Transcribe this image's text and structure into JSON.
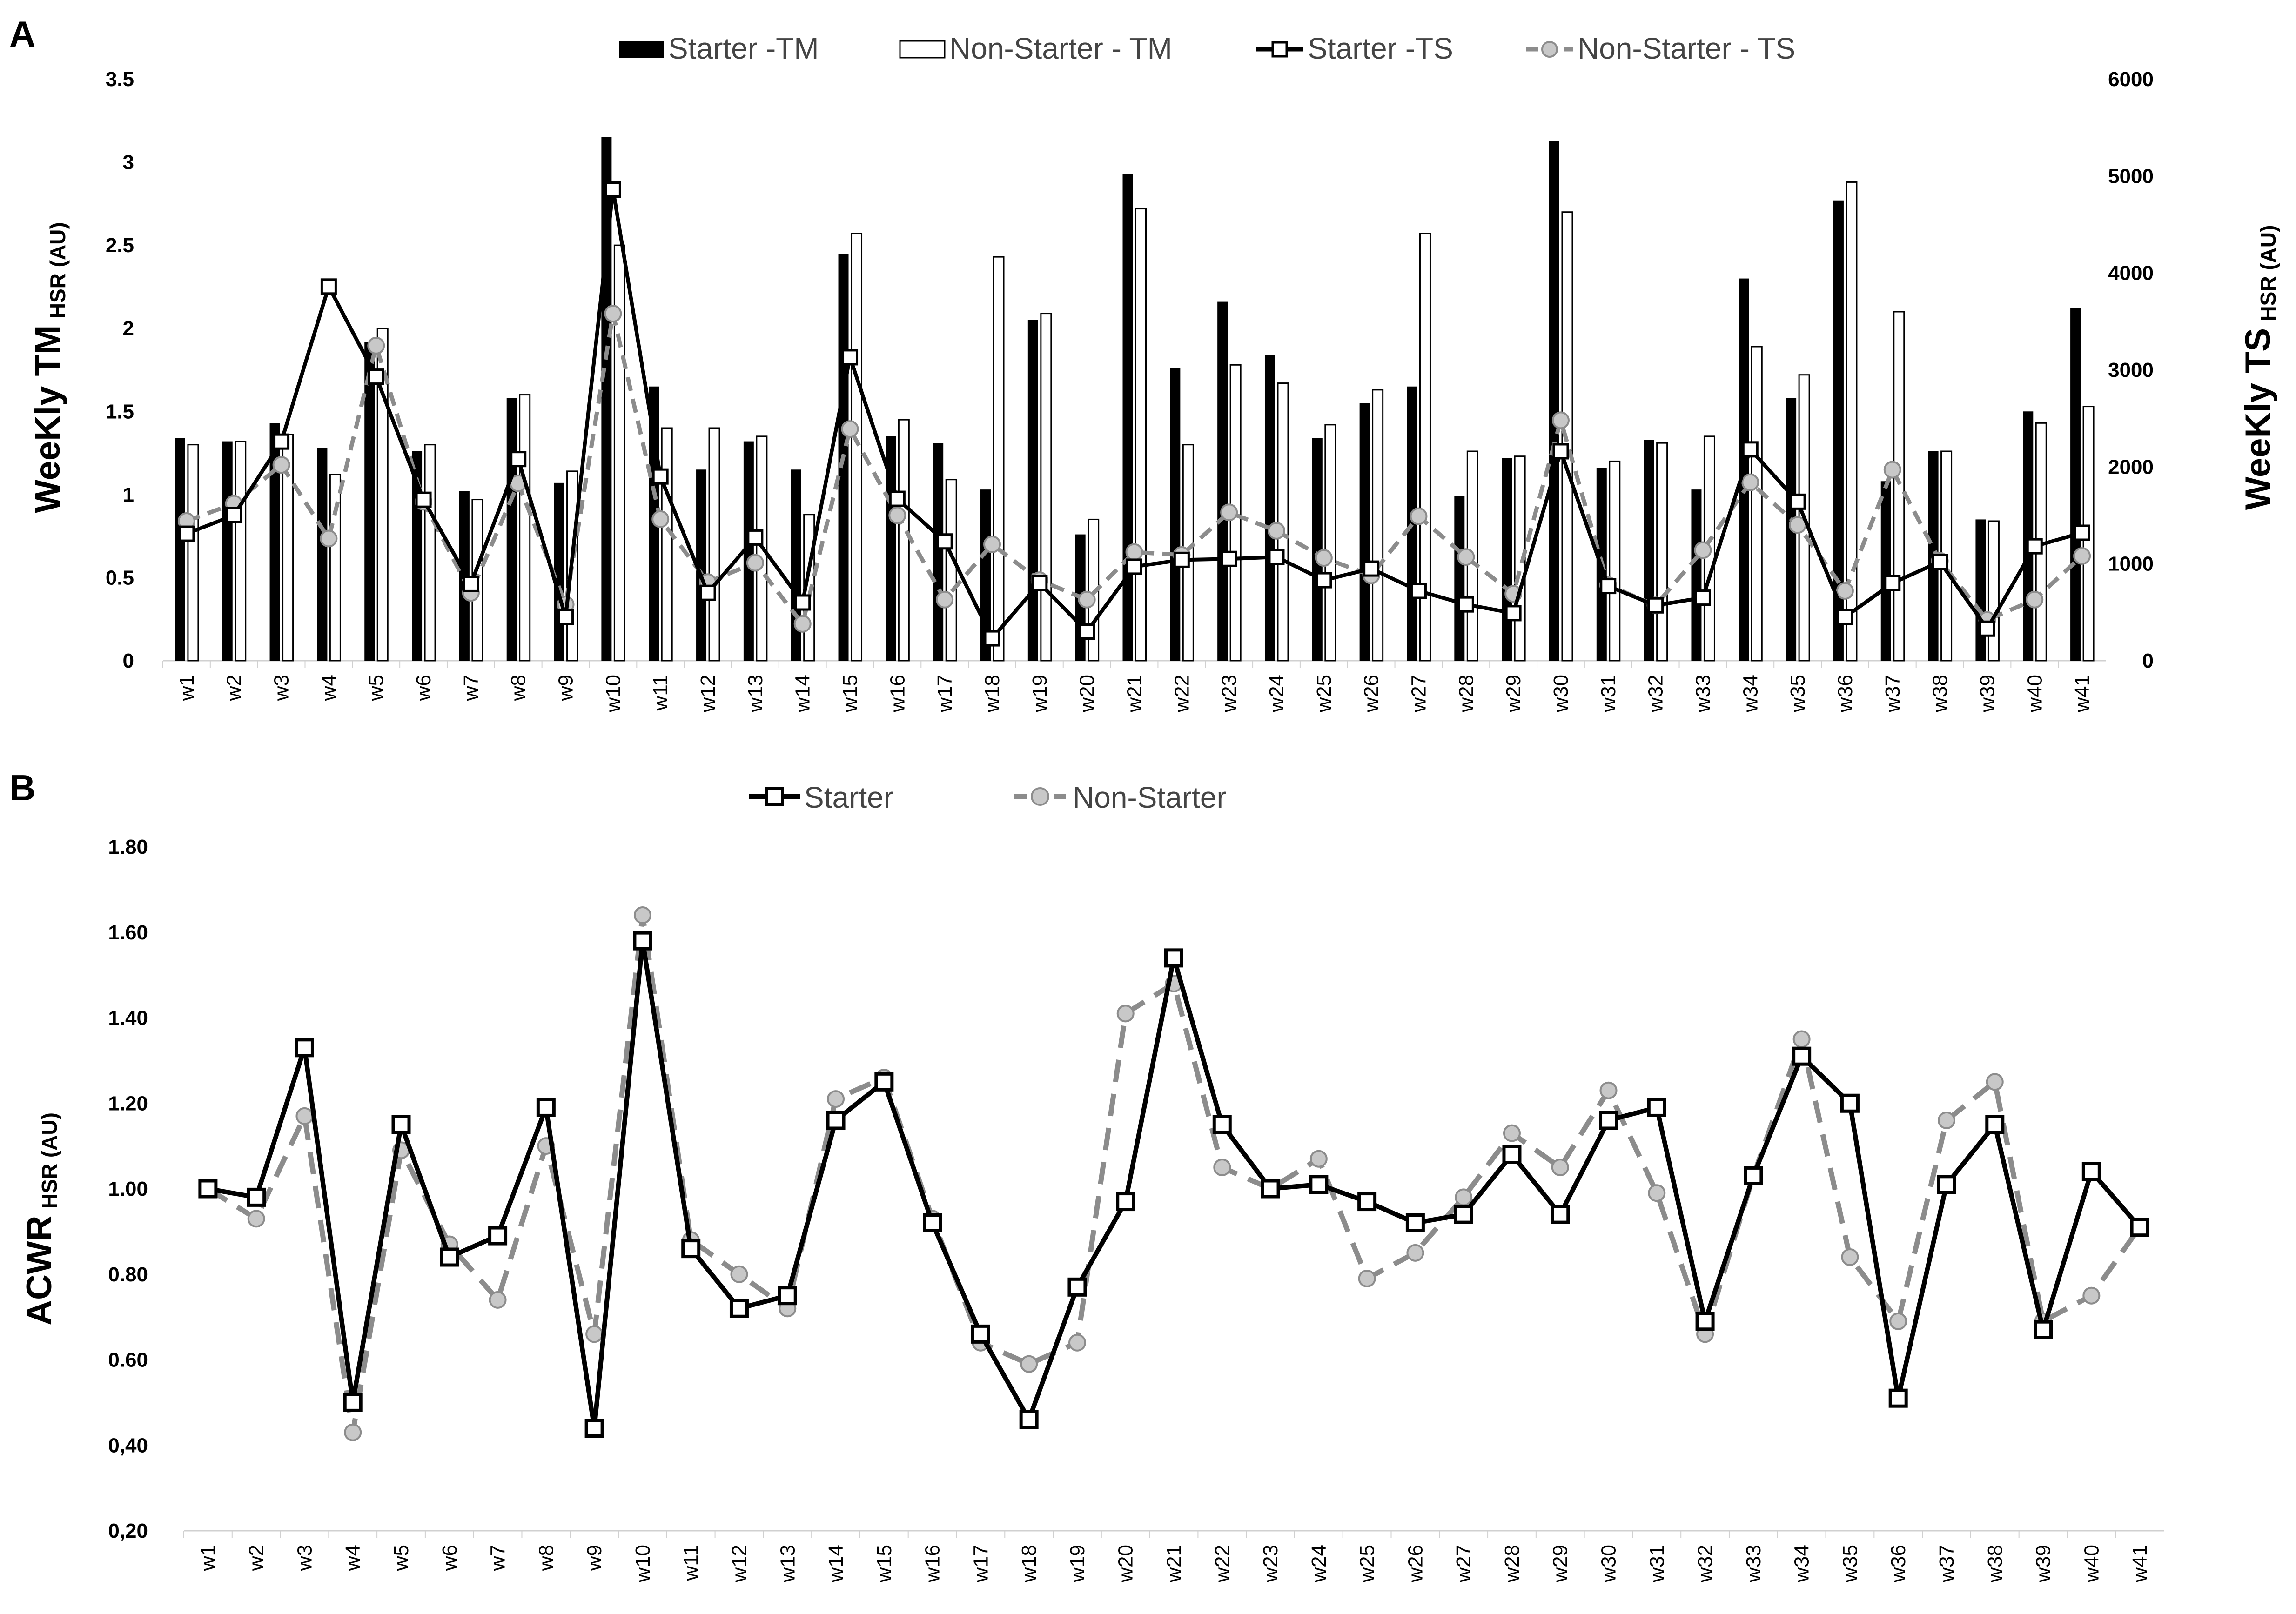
{
  "weeks": [
    "w1",
    "w2",
    "w3",
    "w4",
    "w5",
    "w6",
    "w7",
    "w8",
    "w9",
    "w10",
    "w11",
    "w12",
    "w13",
    "w14",
    "w15",
    "w16",
    "w17",
    "w18",
    "w19",
    "w20",
    "w21",
    "w22",
    "w23",
    "w24",
    "w25",
    "w26",
    "w27",
    "w28",
    "w29",
    "w30",
    "w31",
    "w32",
    "w33",
    "w34",
    "w35",
    "w36",
    "w37",
    "w38",
    "w39",
    "w40",
    "w41"
  ],
  "colors": {
    "starter": "#000000",
    "non_starter": "#8c8c8c",
    "non_starter_marker": "#c8c8c8",
    "axis": "#d0d0d0"
  },
  "chart_data": [
    {
      "panel": "A",
      "type": "bar",
      "ylabel_left": {
        "main": "WeeKly TM",
        "sub": "HSR (AU)"
      },
      "ylabel_right": {
        "main": "WeeKly TS",
        "sub": "HSR (AU)"
      },
      "ylim_left": [
        0,
        3.5
      ],
      "yticks_left": [
        "0",
        "0.5",
        "1",
        "1.5",
        "2",
        "2.5",
        "3",
        "3.5"
      ],
      "ylim_right": [
        0,
        6000
      ],
      "yticks_right": [
        "0",
        "1000",
        "2000",
        "3000",
        "4000",
        "5000",
        "6000"
      ],
      "legend_position": "top",
      "series": [
        {
          "name": "Starter -TM",
          "kind": "bar",
          "axis": "left",
          "style": "black-bar",
          "values": [
            1.34,
            1.32,
            1.43,
            1.28,
            1.92,
            1.26,
            1.02,
            1.58,
            1.07,
            3.15,
            1.65,
            1.15,
            1.32,
            1.15,
            2.45,
            1.35,
            1.31,
            1.03,
            2.05,
            0.76,
            2.93,
            1.76,
            2.16,
            1.84,
            1.34,
            1.55,
            1.65,
            0.99,
            1.22,
            3.13,
            1.16,
            1.33,
            1.03,
            2.3,
            1.58,
            2.77,
            1.08,
            1.26,
            0.85,
            1.5,
            2.12
          ]
        },
        {
          "name": "Non-Starter - TM",
          "kind": "bar",
          "axis": "left",
          "style": "white-bar",
          "values": [
            1.3,
            1.32,
            1.36,
            1.12,
            2.0,
            1.3,
            0.97,
            1.6,
            1.14,
            2.5,
            1.4,
            1.4,
            1.35,
            0.88,
            2.57,
            1.45,
            1.09,
            2.43,
            2.09,
            0.85,
            2.72,
            1.3,
            1.78,
            1.67,
            1.42,
            1.63,
            2.57,
            1.26,
            1.23,
            2.7,
            1.2,
            1.31,
            1.35,
            1.89,
            1.72,
            2.88,
            2.1,
            1.26,
            0.84,
            1.43,
            1.53
          ]
        },
        {
          "name": "Starter -TS",
          "kind": "line",
          "axis": "right",
          "style": "solid-square",
          "values": [
            1310,
            1500,
            2260,
            3860,
            2930,
            1660,
            790,
            2080,
            450,
            4860,
            1900,
            700,
            1270,
            600,
            3130,
            1670,
            1230,
            230,
            800,
            300,
            970,
            1040,
            1050,
            1070,
            830,
            950,
            720,
            580,
            490,
            2160,
            770,
            570,
            650,
            2180,
            1640,
            450,
            800,
            1020,
            330,
            1180,
            1320
          ]
        },
        {
          "name": "Non-Starter - TS",
          "kind": "line",
          "axis": "right",
          "style": "dashed-circle",
          "values": [
            1440,
            1620,
            2020,
            1260,
            3250,
            1640,
            700,
            1830,
            580,
            3580,
            1460,
            810,
            1010,
            380,
            2390,
            1500,
            630,
            1200,
            830,
            630,
            1120,
            1090,
            1530,
            1340,
            1060,
            880,
            1490,
            1070,
            690,
            2480,
            780,
            570,
            1140,
            1840,
            1400,
            720,
            1970,
            1030,
            420,
            630,
            1080
          ]
        }
      ]
    },
    {
      "panel": "B",
      "type": "line",
      "ylabel": {
        "main": "ACWR",
        "sub": "HSR (AU)"
      },
      "ylim": [
        0.2,
        1.8
      ],
      "yticks": [
        "0,20",
        "0,40",
        "0.60",
        "0.80",
        "1.00",
        "1.20",
        "1.40",
        "1.60",
        "1.80"
      ],
      "legend_position": "top",
      "series": [
        {
          "name": "Starter",
          "style": "solid-square",
          "values": [
            1.0,
            0.98,
            1.33,
            0.5,
            1.15,
            0.84,
            0.89,
            1.19,
            0.44,
            1.58,
            0.86,
            0.72,
            0.75,
            1.16,
            1.25,
            0.92,
            0.66,
            0.46,
            0.77,
            0.97,
            1.54,
            1.15,
            1.0,
            1.01,
            0.97,
            0.92,
            0.94,
            1.08,
            0.94,
            1.16,
            1.19,
            0.69,
            1.03,
            1.31,
            1.2,
            0.51,
            1.01,
            1.15,
            0.67,
            1.04,
            0.91
          ]
        },
        {
          "name": "Non-Starter",
          "style": "dashed-circle",
          "values": [
            1.0,
            0.93,
            1.17,
            0.43,
            1.09,
            0.87,
            0.74,
            1.1,
            0.66,
            1.64,
            0.88,
            0.8,
            0.72,
            1.21,
            1.26,
            0.93,
            0.64,
            0.59,
            0.64,
            1.41,
            1.48,
            1.05,
            1.0,
            1.07,
            0.79,
            0.85,
            0.98,
            1.13,
            1.05,
            1.23,
            0.99,
            0.66,
            1.03,
            1.35,
            0.84,
            0.69,
            1.16,
            1.25,
            0.69,
            0.75,
            0.91
          ]
        }
      ]
    }
  ]
}
